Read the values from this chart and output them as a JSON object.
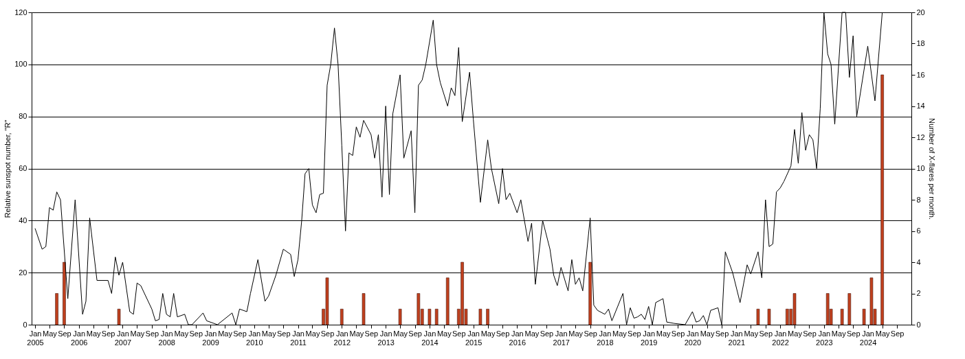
{
  "chart_data": {
    "type": "bar",
    "ylabel": "Relative sunspot number, \"R\"",
    "y2label": "Number of X-flares per month.",
    "xlim": [
      "2005-01",
      "2024-12"
    ],
    "ylim": [
      0,
      120
    ],
    "yticks": [
      0,
      20,
      40,
      60,
      80,
      100,
      120
    ],
    "y2lim": [
      0,
      20
    ],
    "y2ticks": [
      0,
      2,
      4,
      6,
      8,
      10,
      12,
      14,
      16,
      18,
      20
    ],
    "xticks": [
      {
        "value": "2005-01",
        "label": "Jan 2005"
      },
      {
        "value": "2005-05",
        "label": "May"
      },
      {
        "value": "2005-09",
        "label": "Sep"
      },
      {
        "value": "2006-01",
        "label": "Jan 2006"
      },
      {
        "value": "2006-05",
        "label": "May"
      },
      {
        "value": "2006-09",
        "label": "Sep"
      },
      {
        "value": "2007-01",
        "label": "Jan 2007"
      },
      {
        "value": "2007-05",
        "label": "May"
      },
      {
        "value": "2007-09",
        "label": "Sep"
      },
      {
        "value": "2008-01",
        "label": "Jan 2008"
      },
      {
        "value": "2008-05",
        "label": "May"
      },
      {
        "value": "2008-09",
        "label": "Sep"
      },
      {
        "value": "2009-01",
        "label": "Jan 2009"
      },
      {
        "value": "2009-05",
        "label": "May"
      },
      {
        "value": "2009-09",
        "label": "Sep"
      },
      {
        "value": "2010-01",
        "label": "Jan 2010"
      },
      {
        "value": "2010-05",
        "label": "May"
      },
      {
        "value": "2010-09",
        "label": "Sep"
      },
      {
        "value": "2011-01",
        "label": "Jan 2011"
      },
      {
        "value": "2011-05",
        "label": "May"
      },
      {
        "value": "2011-09",
        "label": "Sep"
      },
      {
        "value": "2012-01",
        "label": "Jan 2012"
      },
      {
        "value": "2012-05",
        "label": "May"
      },
      {
        "value": "2012-09",
        "label": "Sep"
      },
      {
        "value": "2013-01",
        "label": "Jan 2013"
      },
      {
        "value": "2013-05",
        "label": "May"
      },
      {
        "value": "2013-09",
        "label": "Sep"
      },
      {
        "value": "2014-01",
        "label": "Jan 2014"
      },
      {
        "value": "2014-05",
        "label": "May"
      },
      {
        "value": "2014-09",
        "label": "Sep"
      },
      {
        "value": "2015-01",
        "label": "Jan 2015"
      },
      {
        "value": "2015-05",
        "label": "May"
      },
      {
        "value": "2015-09",
        "label": "Sep"
      },
      {
        "value": "2016-01",
        "label": "Jan 2016"
      },
      {
        "value": "2016-05",
        "label": "May"
      },
      {
        "value": "2016-09",
        "label": "Sep"
      },
      {
        "value": "2017-01",
        "label": "Jan 2017"
      },
      {
        "value": "2017-05",
        "label": "May"
      },
      {
        "value": "2017-09",
        "label": "Sep"
      },
      {
        "value": "2018-01",
        "label": "Jan 2018"
      },
      {
        "value": "2018-05",
        "label": "May"
      },
      {
        "value": "2018-09",
        "label": "Sep"
      },
      {
        "value": "2019-01",
        "label": "Jan 2019"
      },
      {
        "value": "2019-05",
        "label": "May"
      },
      {
        "value": "2019-09",
        "label": "Sep"
      },
      {
        "value": "2020-01",
        "label": "Jan 2020"
      },
      {
        "value": "2020-05",
        "label": "May"
      },
      {
        "value": "2020-09",
        "label": "Sep"
      },
      {
        "value": "2021-01",
        "label": "Jan 2021"
      },
      {
        "value": "2021-05",
        "label": "May"
      },
      {
        "value": "2021-09",
        "label": "Sep"
      },
      {
        "value": "2022-01",
        "label": "Jan 2022"
      },
      {
        "value": "2022-05",
        "label": "May"
      },
      {
        "value": "2022-09",
        "label": "Sep"
      },
      {
        "value": "2023-01",
        "label": "Jan 2023"
      },
      {
        "value": "2023-05",
        "label": "May"
      },
      {
        "value": "2023-09",
        "label": "Sep"
      },
      {
        "value": "2024-01",
        "label": "Jan 2024"
      },
      {
        "value": "2024-05",
        "label": "May"
      },
      {
        "value": "2024-09",
        "label": "Sep"
      }
    ],
    "grid": "y",
    "marker": "none",
    "line_style": "solid",
    "series": [
      {
        "axis": "y2",
        "color": "#c0401e",
        "x": [
          "2005-07",
          "2005-09",
          "2006-12",
          "2011-08",
          "2011-09",
          "2012-01",
          "2012-07",
          "2013-05",
          "2013-10",
          "2013-11",
          "2014-01",
          "2014-03",
          "2014-06",
          "2014-09",
          "2014-10",
          "2014-11",
          "2015-03",
          "2015-05",
          "2017-09",
          "2021-07",
          "2021-10",
          "2022-03",
          "2022-04",
          "2022-05",
          "2023-02",
          "2023-03",
          "2023-06",
          "2023-08",
          "2023-12",
          "2024-02",
          "2024-03",
          "2024-05"
        ],
        "values": [
          2,
          4,
          1,
          1,
          3,
          1,
          2,
          1,
          2,
          1,
          1,
          1,
          3,
          1,
          4,
          1,
          1,
          1,
          4,
          1,
          1,
          1,
          1,
          2,
          2,
          1,
          1,
          2,
          1,
          3,
          1,
          16
        ]
      },
      {
        "type": "line",
        "axis": "y",
        "color": "#000000",
        "x": [
          "2005-01",
          "2005-03",
          "2005-04",
          "2005-05",
          "2005-06",
          "2005-07",
          "2005-08",
          "2005-10",
          "2005-12",
          "2006-02",
          "2006-03",
          "2006-04",
          "2006-06",
          "2006-09",
          "2006-10",
          "2006-11",
          "2006-12",
          "2007-01",
          "2007-03",
          "2007-04",
          "2007-05",
          "2007-06",
          "2007-09",
          "2007-10",
          "2007-11",
          "2007-12",
          "2008-01",
          "2008-02",
          "2008-03",
          "2008-04",
          "2008-06",
          "2008-07",
          "2008-08",
          "2008-11",
          "2008-12",
          "2009-03",
          "2009-07",
          "2009-08",
          "2009-09",
          "2009-11",
          "2009-12",
          "2010-02",
          "2010-04",
          "2010-05",
          "2010-07",
          "2010-09",
          "2010-11",
          "2010-12",
          "2011-01",
          "2011-02",
          "2011-03",
          "2011-04",
          "2011-05",
          "2011-06",
          "2011-07",
          "2011-08",
          "2011-09",
          "2011-10",
          "2011-11",
          "2011-12",
          "2012-01",
          "2012-02",
          "2012-03",
          "2012-04",
          "2012-05",
          "2012-06",
          "2012-07",
          "2012-09",
          "2012-10",
          "2012-11",
          "2012-12",
          "2013-01",
          "2013-02",
          "2013-03",
          "2013-05",
          "2013-06",
          "2013-08",
          "2013-09",
          "2013-10",
          "2013-11",
          "2013-12",
          "2014-02",
          "2014-03",
          "2014-04",
          "2014-06",
          "2014-07",
          "2014-08",
          "2014-09",
          "2014-10",
          "2014-12",
          "2015-01",
          "2015-03",
          "2015-05",
          "2015-06",
          "2015-08",
          "2015-09",
          "2015-10",
          "2015-11",
          "2016-01",
          "2016-02",
          "2016-04",
          "2016-05",
          "2016-06",
          "2016-08",
          "2016-10",
          "2016-11",
          "2016-12",
          "2017-01",
          "2017-03",
          "2017-04",
          "2017-05",
          "2017-06",
          "2017-07",
          "2017-09",
          "2017-10",
          "2017-11",
          "2018-01",
          "2018-02",
          "2018-03",
          "2018-06",
          "2018-07",
          "2018-08",
          "2018-09",
          "2018-10",
          "2018-11",
          "2018-12",
          "2019-01",
          "2019-02",
          "2019-03",
          "2019-05",
          "2019-06",
          "2019-08",
          "2019-11",
          "2020-01",
          "2020-02",
          "2020-03",
          "2020-04",
          "2020-05",
          "2020-06",
          "2020-08",
          "2020-09",
          "2020-10",
          "2020-12",
          "2021-02",
          "2021-04",
          "2021-05",
          "2021-07",
          "2021-08",
          "2021-09",
          "2021-10",
          "2021-11",
          "2021-12",
          "2022-01",
          "2022-02",
          "2022-04",
          "2022-05",
          "2022-06",
          "2022-07",
          "2022-08",
          "2022-09",
          "2022-10",
          "2022-11",
          "2022-12",
          "2023-01",
          "2023-02",
          "2023-03",
          "2023-04",
          "2023-06",
          "2023-07",
          "2023-08",
          "2023-09",
          "2023-10",
          "2024-01",
          "2024-03",
          "2024-05"
        ],
        "values": [
          37,
          29,
          30,
          45,
          44,
          51,
          48,
          10,
          48,
          4,
          9,
          41,
          17,
          17,
          12,
          26,
          19,
          24,
          5,
          4,
          16,
          15,
          6,
          1.5,
          2,
          12,
          4,
          3,
          12,
          3,
          4,
          0,
          0,
          4.5,
          1.5,
          0,
          4.5,
          0,
          6,
          5,
          12,
          25,
          9,
          11,
          19,
          29,
          27,
          18.5,
          25,
          40,
          58,
          60,
          46,
          43,
          50,
          50.5,
          92,
          100,
          114,
          100,
          69,
          36,
          66,
          65,
          76,
          72,
          78.5,
          73,
          64,
          73,
          49,
          84,
          50,
          81,
          96,
          64,
          74.5,
          43,
          92,
          94,
          100,
          117,
          100,
          93,
          84,
          91,
          88,
          106.5,
          78,
          97,
          79,
          47,
          71,
          60,
          46.5,
          60,
          48,
          50.5,
          43,
          48,
          32,
          39,
          15.5,
          40,
          29,
          19,
          15,
          22,
          13,
          25,
          15.5,
          18,
          13,
          41,
          7.5,
          5.5,
          4,
          6,
          1.5,
          12,
          0,
          6.5,
          2.5,
          3,
          4,
          2,
          7,
          0,
          8.5,
          10,
          1,
          0.5,
          0,
          5,
          1,
          1.5,
          3.5,
          0,
          5.5,
          6.5,
          0,
          28,
          20,
          8.5,
          23,
          19.5,
          28,
          18,
          48,
          30,
          31,
          51,
          52.5,
          55,
          61,
          75,
          62,
          81.5,
          67,
          73,
          71,
          60,
          83,
          120,
          104,
          100,
          77,
          120,
          120,
          95,
          111,
          80,
          107,
          86,
          120
        ]
      }
    ]
  }
}
